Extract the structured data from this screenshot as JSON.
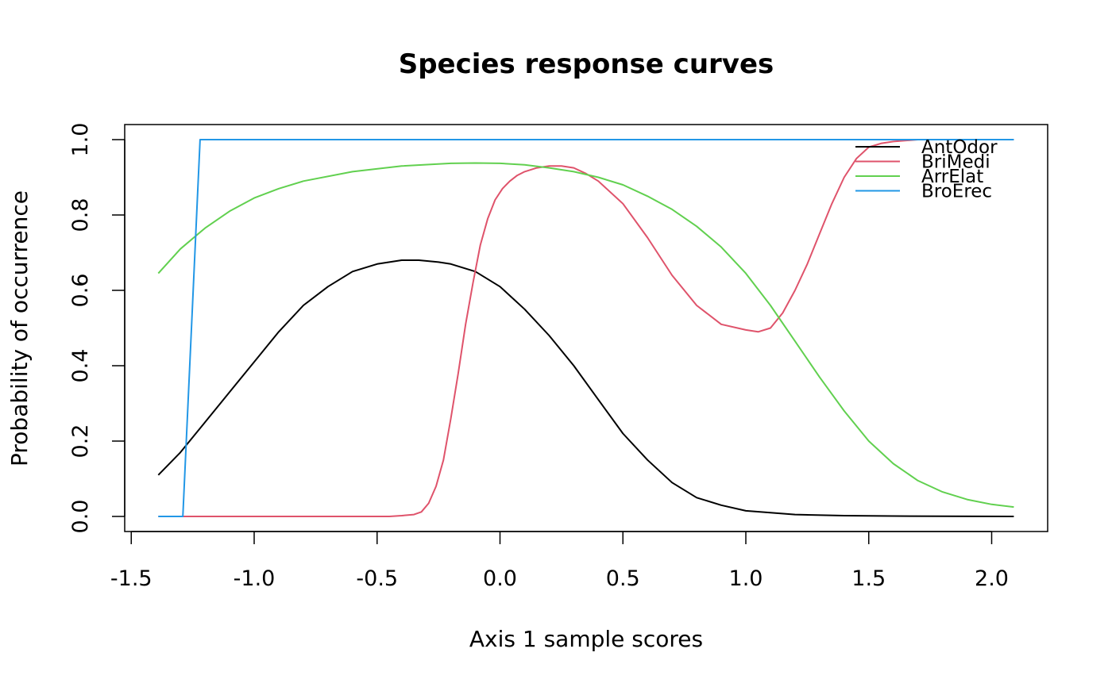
{
  "chart_data": {
    "type": "line",
    "title": "Species response curves",
    "xlabel": "Axis 1 sample scores",
    "ylabel": "Probability of occurrence",
    "xlim": [
      -1.4,
      2.1
    ],
    "ylim": [
      0,
      1
    ],
    "xticks": [
      -1.5,
      -1.0,
      -0.5,
      0.0,
      0.5,
      1.0,
      1.5,
      2.0
    ],
    "xtick_labels": [
      "-1.5",
      "-1.0",
      "-0.5",
      "0.0",
      "0.5",
      "1.0",
      "1.5",
      "2.0"
    ],
    "yticks": [
      0.0,
      0.2,
      0.4,
      0.6,
      0.8,
      1.0
    ],
    "ytick_labels": [
      "0.0",
      "0.2",
      "0.4",
      "0.6",
      "0.8",
      "1.0"
    ],
    "grid": false,
    "legend_position": "top-right",
    "series": [
      {
        "name": "AntOdor",
        "color": "#000000",
        "x": [
          -1.39,
          -1.3,
          -1.2,
          -1.1,
          -1.0,
          -0.9,
          -0.8,
          -0.7,
          -0.6,
          -0.5,
          -0.4,
          -0.33,
          -0.25,
          -0.2,
          -0.1,
          0.0,
          0.1,
          0.2,
          0.3,
          0.4,
          0.5,
          0.6,
          0.7,
          0.8,
          0.9,
          1.0,
          1.1,
          1.2,
          1.4,
          1.6,
          1.8,
          2.09
        ],
        "y": [
          0.11,
          0.17,
          0.25,
          0.33,
          0.41,
          0.49,
          0.56,
          0.61,
          0.65,
          0.67,
          0.68,
          0.68,
          0.675,
          0.67,
          0.65,
          0.61,
          0.55,
          0.48,
          0.4,
          0.31,
          0.22,
          0.15,
          0.09,
          0.05,
          0.03,
          0.015,
          0.01,
          0.005,
          0.002,
          0.001,
          0.0005,
          0.0
        ]
      },
      {
        "name": "BriMedi",
        "color": "#DF536B",
        "x": [
          -1.39,
          -1.0,
          -0.6,
          -0.45,
          -0.4,
          -0.35,
          -0.32,
          -0.29,
          -0.26,
          -0.23,
          -0.2,
          -0.17,
          -0.14,
          -0.11,
          -0.08,
          -0.05,
          -0.02,
          0.01,
          0.04,
          0.07,
          0.1,
          0.15,
          0.2,
          0.25,
          0.3,
          0.35,
          0.4,
          0.5,
          0.6,
          0.7,
          0.8,
          0.9,
          1.0,
          1.05,
          1.1,
          1.15,
          1.2,
          1.25,
          1.3,
          1.35,
          1.4,
          1.45,
          1.5,
          1.55,
          1.6,
          1.7,
          1.8,
          2.09
        ],
        "y": [
          0.0,
          0.0,
          0.0,
          0.0,
          0.002,
          0.005,
          0.012,
          0.035,
          0.08,
          0.15,
          0.26,
          0.38,
          0.51,
          0.62,
          0.72,
          0.79,
          0.84,
          0.87,
          0.89,
          0.905,
          0.915,
          0.925,
          0.93,
          0.93,
          0.925,
          0.91,
          0.89,
          0.83,
          0.74,
          0.64,
          0.56,
          0.51,
          0.495,
          0.49,
          0.5,
          0.54,
          0.6,
          0.67,
          0.75,
          0.83,
          0.9,
          0.95,
          0.98,
          0.99,
          0.995,
          1.0,
          1.0,
          1.0
        ]
      },
      {
        "name": "ArrElat",
        "color": "#61D04F",
        "x": [
          -1.39,
          -1.3,
          -1.2,
          -1.1,
          -1.0,
          -0.9,
          -0.8,
          -0.6,
          -0.4,
          -0.2,
          -0.1,
          0.0,
          0.1,
          0.2,
          0.3,
          0.4,
          0.5,
          0.6,
          0.7,
          0.8,
          0.9,
          1.0,
          1.1,
          1.2,
          1.3,
          1.4,
          1.5,
          1.6,
          1.7,
          1.8,
          1.9,
          2.0,
          2.09
        ],
        "y": [
          0.645,
          0.71,
          0.765,
          0.81,
          0.845,
          0.87,
          0.89,
          0.915,
          0.93,
          0.937,
          0.938,
          0.937,
          0.933,
          0.925,
          0.915,
          0.9,
          0.88,
          0.85,
          0.815,
          0.77,
          0.715,
          0.645,
          0.56,
          0.465,
          0.37,
          0.28,
          0.2,
          0.14,
          0.095,
          0.065,
          0.045,
          0.032,
          0.025
        ]
      },
      {
        "name": "BroErec",
        "color": "#2297E6",
        "x": [
          -1.39,
          -1.29,
          -1.22,
          2.09
        ],
        "y": [
          0.0,
          0.0,
          1.0,
          1.0
        ]
      }
    ]
  }
}
